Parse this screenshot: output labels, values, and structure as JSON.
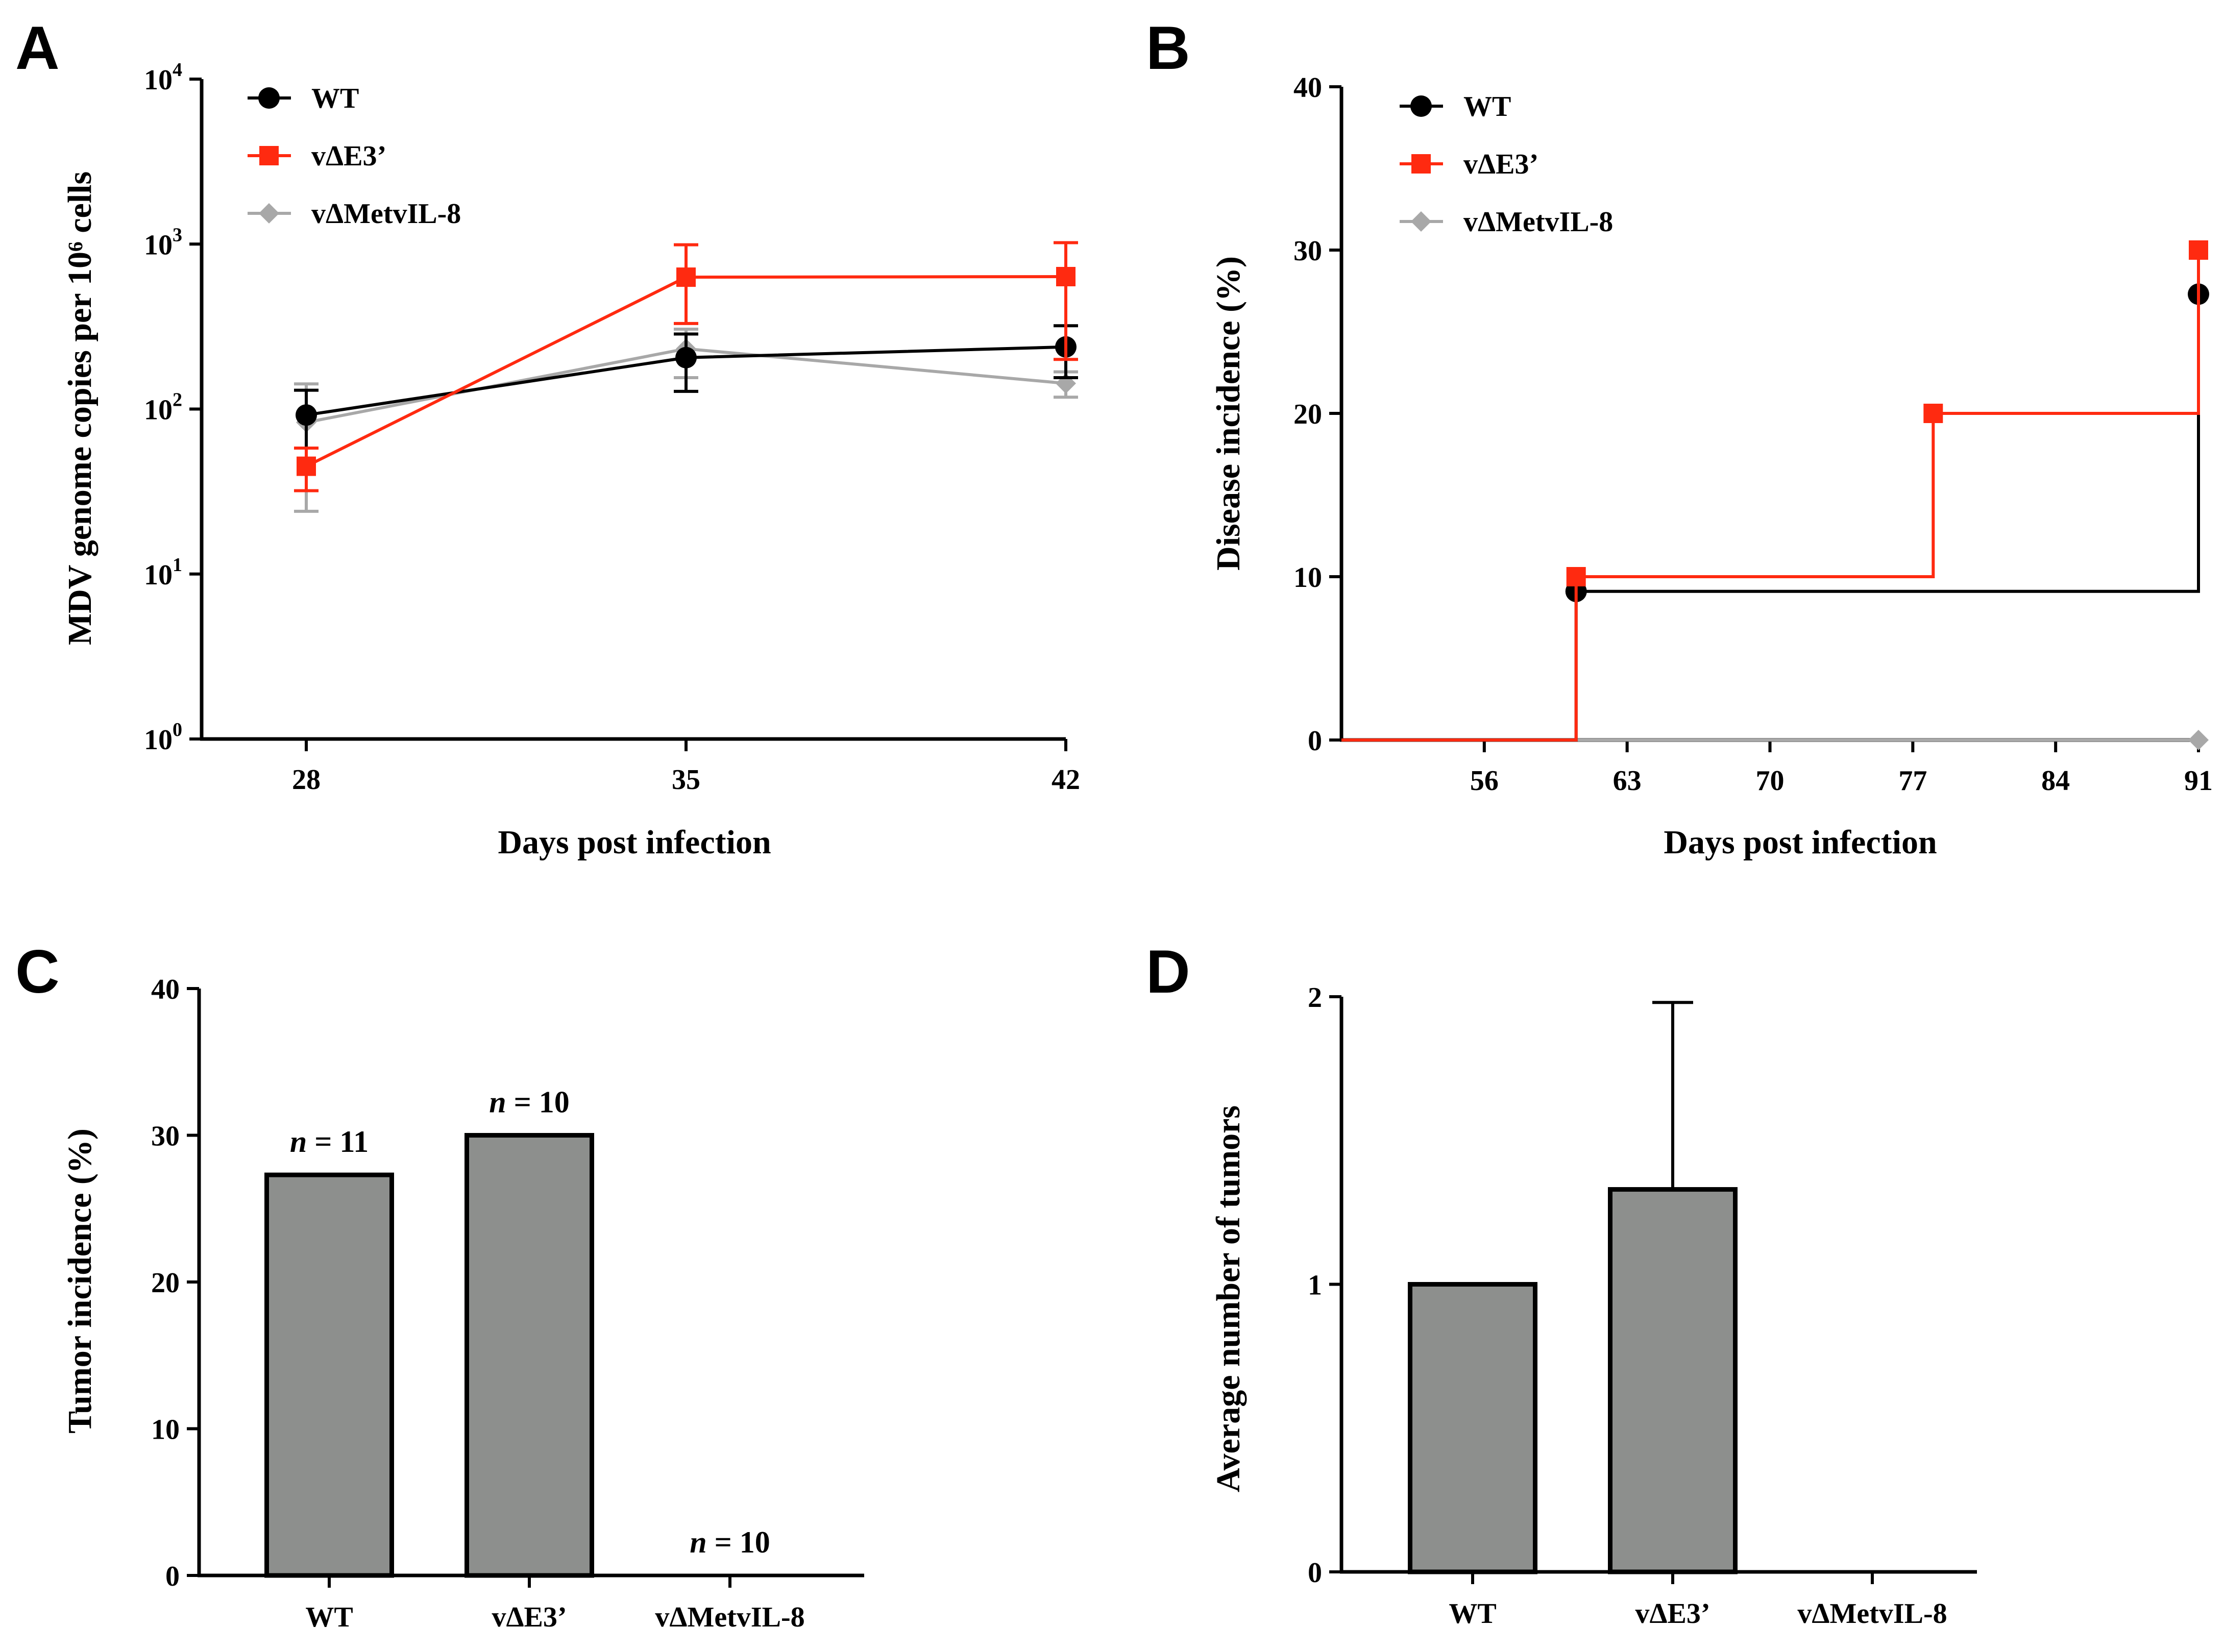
{
  "colors": {
    "wt": "#000000",
    "dE3": "#ff2a10",
    "dMet": "#a8a8a8",
    "bar": "#8d8f8d",
    "axis": "#000000"
  },
  "chart_data": [
    {
      "panel": "A",
      "type": "line",
      "title": "",
      "xlabel": "Days post infection",
      "ylabel": "MDV genome copies per 10⁶ cells",
      "yscale": "log",
      "ylim": [
        1,
        10000
      ],
      "xlim": [
        26,
        42
      ],
      "xticks": [
        28,
        35,
        42
      ],
      "xtick_labels": [
        "28",
        "35",
        "42"
      ],
      "yticks": [
        1,
        10,
        100,
        1000,
        10000
      ],
      "ytick_labels": [
        {
          "base": "10",
          "exp": "0"
        },
        {
          "base": "10",
          "exp": "1"
        },
        {
          "base": "10",
          "exp": "2"
        },
        {
          "base": "10",
          "exp": "3"
        },
        {
          "base": "10",
          "exp": "4"
        }
      ],
      "legend_position": "top-left",
      "series": [
        {
          "key": "wt",
          "name": "WT",
          "marker": "circle",
          "x": [
            28,
            35,
            42
          ],
          "y": [
            92,
            205,
            238
          ],
          "err_low": [
            58,
            128,
            155
          ],
          "err_high": [
            130,
            285,
            320
          ]
        },
        {
          "key": "dE3",
          "name": "vΔE3’",
          "marker": "square",
          "x": [
            28,
            35,
            42
          ],
          "y": [
            45,
            630,
            635
          ],
          "err_low": [
            32,
            330,
            200
          ],
          "err_high": [
            58,
            990,
            1020
          ]
        },
        {
          "key": "dMet",
          "name": "vΔMetvIL-8",
          "marker": "diamond",
          "x": [
            28,
            35,
            42
          ],
          "y": [
            83,
            232,
            143
          ],
          "err_low": [
            24,
            155,
            118
          ],
          "err_high": [
            142,
            305,
            168
          ]
        }
      ]
    },
    {
      "panel": "B",
      "type": "line",
      "step": true,
      "title": "",
      "xlabel": "Days post infection",
      "ylabel": "Disease incidence (%)",
      "xlim": [
        49,
        91
      ],
      "ylim": [
        0,
        40
      ],
      "xticks": [
        56,
        63,
        70,
        77,
        84,
        91
      ],
      "xtick_labels": [
        "56",
        "63",
        "70",
        "77",
        "84",
        "91"
      ],
      "yticks": [
        0,
        10,
        20,
        30,
        40
      ],
      "ytick_labels": [
        "0",
        "10",
        "20",
        "30",
        "40"
      ],
      "legend_position": "top-left",
      "series": [
        {
          "key": "wt",
          "name": "WT",
          "marker": "circle",
          "x": [
            49,
            60.5,
            91
          ],
          "y": [
            0,
            9.1,
            27.3
          ],
          "markers_at": [
            [
              60.5,
              9.1
            ],
            [
              91,
              27.3
            ]
          ]
        },
        {
          "key": "dE3",
          "name": "vΔE3’",
          "marker": "square",
          "x": [
            49,
            60.5,
            78,
            91
          ],
          "y": [
            0,
            10,
            20,
            30
          ],
          "markers_at": [
            [
              60.5,
              10
            ],
            [
              78,
              20
            ],
            [
              91,
              30
            ]
          ]
        },
        {
          "key": "dMet",
          "name": "vΔMetvIL-8",
          "marker": "diamond",
          "x": [
            49,
            91
          ],
          "y": [
            0,
            0
          ],
          "markers_at": [
            [
              91,
              0
            ]
          ]
        }
      ]
    },
    {
      "panel": "C",
      "type": "bar",
      "title": "",
      "xlabel": "",
      "ylabel": "Tumor incidence (%)",
      "ylim": [
        0,
        40
      ],
      "yticks": [
        0,
        10,
        20,
        30,
        40
      ],
      "ytick_labels": [
        "0",
        "10",
        "20",
        "30",
        "40"
      ],
      "categories": [
        "WT",
        "vΔE3’",
        "vΔMetvIL-8"
      ],
      "values": [
        27.3,
        30,
        0
      ],
      "annotations": [
        {
          "italic": "n",
          "rest": " = 11"
        },
        {
          "italic": "n",
          "rest": " = 10"
        },
        {
          "italic": "n",
          "rest": " = 10"
        }
      ]
    },
    {
      "panel": "D",
      "type": "bar",
      "title": "",
      "xlabel": "",
      "ylabel": "Average number of tumors",
      "ylim": [
        0,
        2
      ],
      "yticks": [
        0,
        1,
        2
      ],
      "ytick_labels": [
        "0",
        "1",
        "2"
      ],
      "categories": [
        "WT",
        "vΔE3’",
        "vΔMetvIL-8"
      ],
      "values": [
        1,
        1.33,
        0
      ],
      "err_high": [
        null,
        1.98,
        null
      ]
    }
  ]
}
